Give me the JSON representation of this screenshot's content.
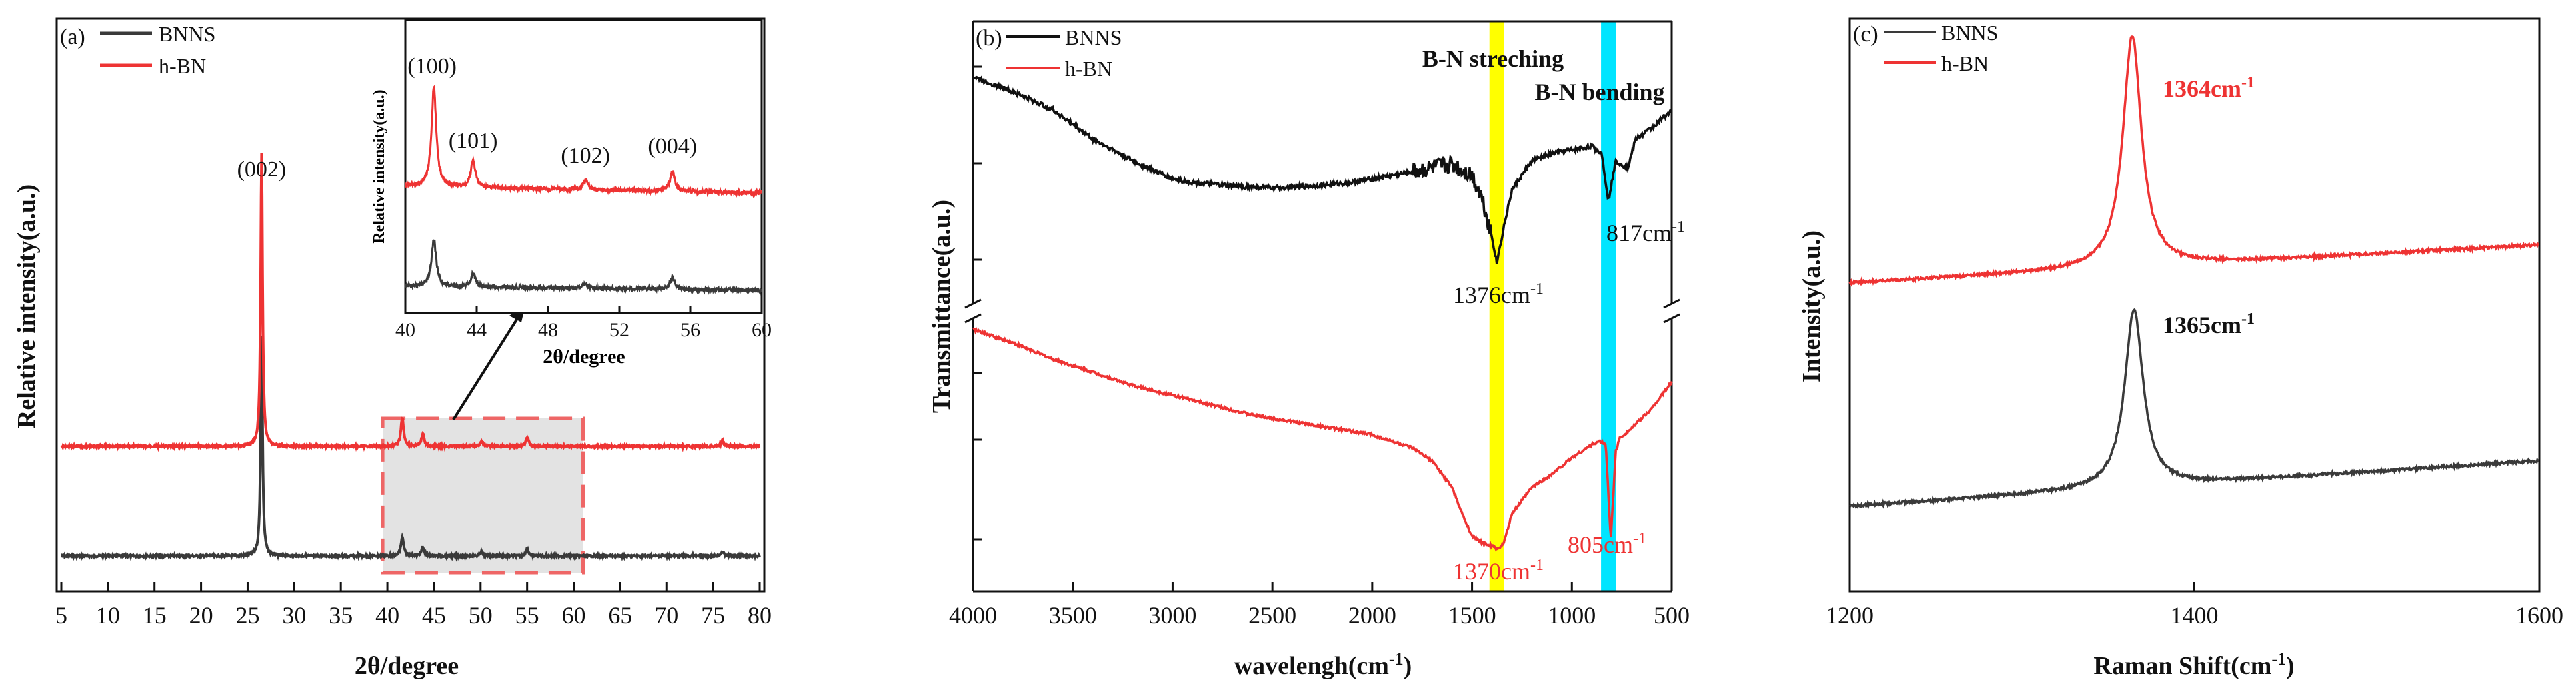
{
  "colors": {
    "bnns": "#3a3a3a",
    "hbn": "#ee3333",
    "axis": "#111111",
    "box_fill": "#e3e3e3",
    "box_stroke": "#ee6666",
    "band_yellow": "#ffff00",
    "band_cyan": "#00e5ff"
  },
  "chart_data": [
    {
      "type": "line",
      "panel_label": "(a)",
      "xlabel": "2θ/degree",
      "ylabel": "Relative intensity(a.u.)",
      "xlim": [
        4.5,
        80.5
      ],
      "xticks": [
        5,
        10,
        15,
        20,
        25,
        30,
        35,
        40,
        45,
        50,
        55,
        60,
        65,
        70,
        75,
        80
      ],
      "series": [
        {
          "name": "BNNS",
          "baseline": 0.0,
          "peaks": [
            [
              26.5,
              1.55
            ],
            [
              41.6,
              0.13
            ],
            [
              43.8,
              0.06
            ],
            [
              50.1,
              0.03
            ],
            [
              55.0,
              0.05
            ],
            [
              76.0,
              0.03
            ]
          ]
        },
        {
          "name": "h-BN",
          "baseline": 1.0,
          "peaks": [
            [
              26.5,
              2.9
            ],
            [
              41.6,
              0.28
            ],
            [
              43.8,
              0.12
            ],
            [
              50.1,
              0.05
            ],
            [
              55.0,
              0.09
            ],
            [
              76.0,
              0.05
            ]
          ]
        }
      ],
      "annotations": [
        {
          "text": "(002)",
          "x": 26.5
        }
      ],
      "highlight_region": [
        39.5,
        61.0
      ],
      "inset": {
        "xlabel": "2θ/degree",
        "ylabel": "Relative intensity(a.u.)",
        "xlim": [
          40,
          60
        ],
        "xticks": [
          40,
          44,
          48,
          52,
          56,
          60
        ],
        "annotations": [
          {
            "text": "(100)",
            "x": 41.5
          },
          {
            "text": "(101)",
            "x": 43.8
          },
          {
            "text": "(102)",
            "x": 50.1
          },
          {
            "text": "(004)",
            "x": 55.0
          }
        ]
      }
    },
    {
      "type": "line",
      "panel_label": "(b)",
      "xlabel": "wavelengh(cm-1)",
      "ylabel": "Transmittance(a.u.)",
      "xlim": [
        4000,
        500
      ],
      "xticks": [
        4000,
        3500,
        3000,
        2500,
        2000,
        1500,
        1000,
        500
      ],
      "series": [
        {
          "name": "BNNS",
          "x": [
            4000,
            3800,
            3600,
            3400,
            3200,
            3000,
            2900,
            2700,
            2500,
            2300,
            2100,
            1900,
            1700,
            1600,
            1500,
            1450,
            1400,
            1376,
            1340,
            1300,
            1200,
            1100,
            1000,
            900,
            850,
            817,
            780,
            720,
            680,
            600,
            500
          ],
          "y": [
            9.7,
            9.3,
            8.8,
            8.0,
            7.4,
            6.9,
            6.8,
            6.7,
            6.65,
            6.7,
            6.8,
            7.0,
            7.2,
            7.3,
            7.0,
            6.4,
            5.3,
            4.6,
            5.6,
            6.6,
            7.4,
            7.6,
            7.7,
            7.8,
            7.6,
            6.3,
            7.4,
            7.2,
            8.0,
            8.3,
            8.8
          ]
        },
        {
          "name": "h-BN",
          "x": [
            4000,
            3800,
            3600,
            3400,
            3200,
            3000,
            2800,
            2600,
            2400,
            2200,
            2000,
            1800,
            1700,
            1600,
            1550,
            1500,
            1450,
            1400,
            1370,
            1340,
            1300,
            1200,
            1100,
            1000,
            900,
            860,
            830,
            805,
            780,
            760,
            700,
            600,
            500
          ],
          "y": [
            3.4,
            3.2,
            2.95,
            2.75,
            2.55,
            2.4,
            2.25,
            2.1,
            2.0,
            1.9,
            1.8,
            1.6,
            1.4,
            1.0,
            0.6,
            0.25,
            0.15,
            0.1,
            0.05,
            0.15,
            0.6,
            1.0,
            1.2,
            1.45,
            1.65,
            1.7,
            1.65,
            0.2,
            1.55,
            1.75,
            1.9,
            2.2,
            2.6
          ]
        }
      ],
      "annotations": [
        {
          "text": "B-N streching",
          "x": 1376
        },
        {
          "text": "B-N bending",
          "x": 817
        },
        {
          "text": "1376cm-1",
          "x": 1376
        },
        {
          "text": "817cm-1",
          "x": 817
        },
        {
          "text": "1370cm-1",
          "x": 1370
        },
        {
          "text": "805cm-1",
          "x": 805
        }
      ],
      "bands": [
        {
          "center": 1376,
          "color": "yellow"
        },
        {
          "center": 817,
          "color": "cyan"
        }
      ],
      "axis_break": true
    },
    {
      "type": "line",
      "panel_label": "(c)",
      "xlabel": "Raman Shift(cm-1)",
      "ylabel": "Intensity(a.u.)",
      "xlim": [
        1200,
        1600
      ],
      "xticks": [
        1200,
        1400,
        1600
      ],
      "series": [
        {
          "name": "BNNS",
          "peak": 1365,
          "peak_height": 0.92,
          "baseline_start": 0.0,
          "baseline_end": 0.18
        },
        {
          "name": "h-BN",
          "peak": 1364,
          "peak_height": 1.2,
          "baseline_start": 1.0,
          "baseline_end": 1.15
        }
      ],
      "annotations": [
        {
          "text": "1365cm-1",
          "x": 1365
        },
        {
          "text": "1364cm-1",
          "x": 1364
        }
      ]
    }
  ],
  "text": {
    "a": {
      "label": "(a)",
      "leg1": "BNNS",
      "leg2": "h-BN",
      "ylabel": "Relative intensity(a.u.)",
      "xlabel": "2θ/degree",
      "p002": "(002)",
      "inset_ylabel": "Relative intensity(a.u.)",
      "inset_xlabel": "2θ/degree",
      "p100": "(100)",
      "p101": "(101)",
      "p102": "(102)",
      "p004": "(004)"
    },
    "b": {
      "label": "(b)",
      "leg1": "BNNS",
      "leg2": "h-BN",
      "ylabel": "Transmittance(a.u.)",
      "xlabel_main": "wavelengh(cm",
      "xlabel_sup": "-1",
      "xlabel_end": ")",
      "stretch": "B-N streching",
      "bend": "B-N bending",
      "a1376": "1376cm",
      "a817": "817cm",
      "a1370": "1370cm",
      "a805": "805cm",
      "sup": "-1"
    },
    "c": {
      "label": "(c)",
      "leg1": "BNNS",
      "leg2": "h-BN",
      "ylabel": "Intensity(a.u.)",
      "xlabel_main": "Raman Shift(cm",
      "xlabel_sup": "-1",
      "xlabel_end": ")",
      "a1364": "1364cm",
      "a1365": "1365cm",
      "sup": "-1"
    }
  }
}
